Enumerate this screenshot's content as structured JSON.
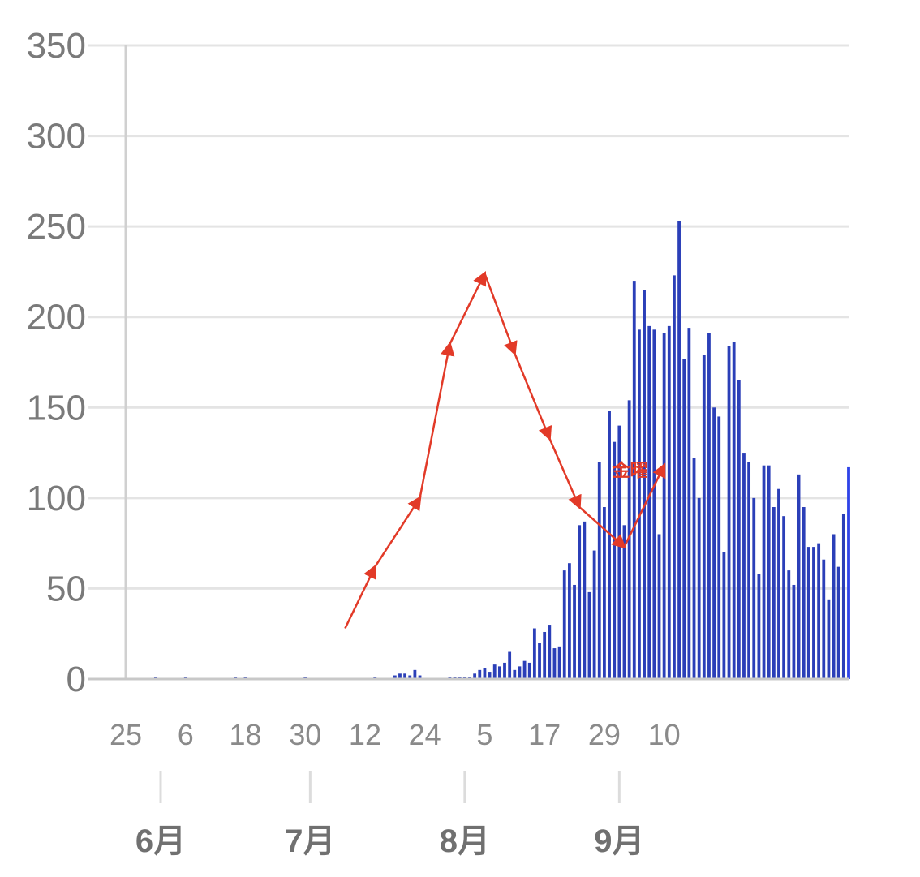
{
  "chart_data": {
    "type": "bar",
    "title": "",
    "xlabel": "",
    "ylabel": "",
    "ylim": [
      0,
      350
    ],
    "yticks": [
      0,
      50,
      100,
      150,
      200,
      250,
      300,
      350
    ],
    "grid": true,
    "colors": {
      "bar": "#2b3fb8",
      "bar_last": "#2f43e8",
      "trend": "#e23a28",
      "grid": "#e4e4e4",
      "axis": "#d0d0d0"
    },
    "start_date": "2020-05-25",
    "date_tick_labels": [
      "25",
      "6",
      "18",
      "30",
      "12",
      "24",
      "5",
      "17",
      "29",
      "10"
    ],
    "month_labels": [
      "6月",
      "7月",
      "8月",
      "9月"
    ],
    "values": [
      0,
      0,
      0,
      0,
      0,
      0,
      1,
      0,
      0,
      0,
      0,
      0,
      1,
      0,
      0,
      0,
      0,
      0,
      0,
      0,
      0,
      0,
      1,
      0,
      1,
      0,
      0,
      0,
      0,
      0,
      0,
      0,
      0,
      0,
      0,
      0,
      1,
      0,
      0,
      0,
      0,
      0,
      0,
      0,
      0,
      0,
      0,
      0,
      0,
      0,
      1,
      0,
      0,
      0,
      2,
      3,
      3,
      2,
      5,
      2,
      0,
      0,
      0,
      0,
      0,
      1,
      1,
      1,
      1,
      1,
      3,
      5,
      6,
      4,
      8,
      7,
      9,
      15,
      5,
      7,
      10,
      9,
      28,
      20,
      26,
      30,
      17,
      18,
      60,
      64,
      52,
      85,
      87,
      48,
      71,
      120,
      95,
      148,
      131,
      140,
      85,
      154,
      220,
      193,
      215,
      195,
      193,
      80,
      191,
      195,
      223,
      253,
      177,
      194,
      122,
      100,
      179,
      191,
      150,
      145,
      70,
      184,
      186,
      165,
      125,
      120,
      100,
      58,
      118,
      118,
      95,
      105,
      90,
      60,
      52,
      113,
      95,
      73,
      73,
      75,
      66,
      44,
      80,
      62,
      91,
      117
    ],
    "trend_line": [
      {
        "date": "2020-07-08",
        "value": 28
      },
      {
        "date": "2020-07-14",
        "value": 62
      },
      {
        "date": "2020-07-23",
        "value": 100
      },
      {
        "date": "2020-07-29",
        "value": 185
      },
      {
        "date": "2020-08-05",
        "value": 224
      },
      {
        "date": "2020-08-11",
        "value": 180
      },
      {
        "date": "2020-08-18",
        "value": 133
      },
      {
        "date": "2020-08-24",
        "value": 95
      },
      {
        "date": "2020-09-02",
        "value": 73
      },
      {
        "date": "2020-09-10",
        "value": 118
      }
    ],
    "annotation": {
      "text": "金曜",
      "date": "2020-09-10",
      "value": 118
    }
  }
}
